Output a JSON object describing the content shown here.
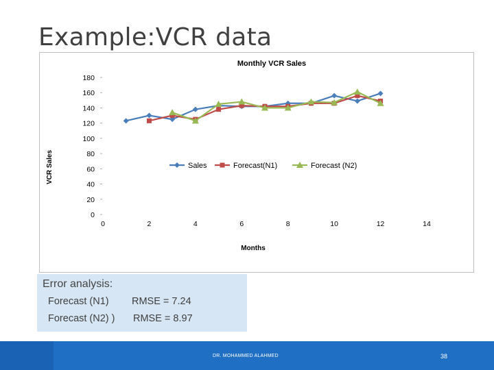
{
  "slide": {
    "title": "Example:VCR data"
  },
  "chart_data": {
    "type": "line",
    "title": "Monthly VCR Sales",
    "xlabel": "Months",
    "ylabel": "VCR Sales",
    "xlim": [
      0,
      14
    ],
    "ylim": [
      0,
      180
    ],
    "x_ticks": [
      "0",
      "2",
      "4",
      "6",
      "8",
      "10",
      "12",
      "14"
    ],
    "y_ticks": [
      "0",
      "20",
      "40",
      "60",
      "80",
      "100",
      "120",
      "140",
      "160",
      "180"
    ],
    "grid": false,
    "legend_position": "center",
    "series": [
      {
        "name": "Sales",
        "color": "#4a7ebb",
        "marker": "diamond",
        "x": [
          1,
          2,
          3,
          4,
          5,
          6,
          7,
          8,
          9,
          10,
          11,
          12
        ],
        "y": [
          123,
          130,
          125,
          138,
          143,
          142,
          142,
          146,
          146,
          156,
          149,
          159
        ]
      },
      {
        "name": "Forecast(N1)",
        "color": "#be4b48",
        "marker": "square",
        "x": [
          2,
          3,
          4,
          5,
          6,
          7,
          8,
          9,
          10,
          11,
          12
        ],
        "y": [
          123,
          130,
          125,
          138,
          143,
          142,
          142,
          146,
          146,
          156,
          149
        ]
      },
      {
        "name": "Forecast (N2)",
        "color": "#98b954",
        "marker": "triangle",
        "x": [
          3,
          4,
          5,
          6,
          7,
          8,
          9,
          10,
          11,
          12
        ],
        "y": [
          134,
          123,
          145,
          148,
          140,
          140,
          148,
          147,
          161,
          146
        ]
      }
    ]
  },
  "error_analysis": {
    "title": "Error analysis:",
    "rows": [
      {
        "label": "Forecast (N1)",
        "value": "RMSE = 7.24"
      },
      {
        "label": "Forecast (N2) )",
        "value": "RMSE = 8.97"
      }
    ]
  },
  "footer": {
    "author": "DR. MOHAMMED ALAHMED",
    "page": "38"
  }
}
